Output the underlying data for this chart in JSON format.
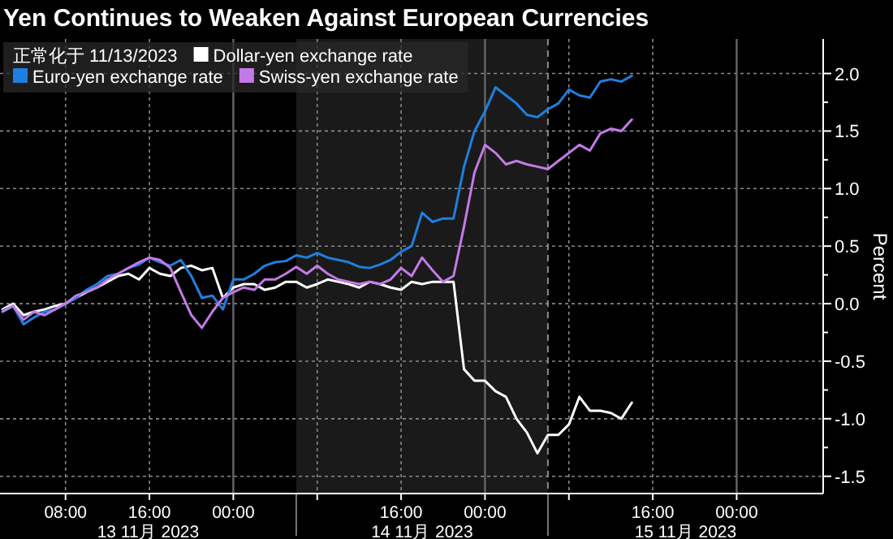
{
  "chart_data": {
    "type": "line",
    "title": "Yen Continues to Weaken Against European Currencies",
    "legend_title": "正常化于 11/13/2023",
    "ylabel": "Percent",
    "x": [
      "2023-11-13T02:00",
      "2023-11-13T03:00",
      "2023-11-13T04:00",
      "2023-11-13T05:00",
      "2023-11-13T06:00",
      "2023-11-13T07:00",
      "2023-11-13T08:00",
      "2023-11-13T09:00",
      "2023-11-13T10:00",
      "2023-11-13T11:00",
      "2023-11-13T12:00",
      "2023-11-13T13:00",
      "2023-11-13T14:00",
      "2023-11-13T15:00",
      "2023-11-13T16:00",
      "2023-11-13T17:00",
      "2023-11-13T18:00",
      "2023-11-13T19:00",
      "2023-11-13T20:00",
      "2023-11-13T21:00",
      "2023-11-13T22:00",
      "2023-11-13T23:00",
      "2023-11-14T00:00",
      "2023-11-14T01:00",
      "2023-11-14T02:00",
      "2023-11-14T03:00",
      "2023-11-14T04:00",
      "2023-11-14T05:00",
      "2023-11-14T06:00",
      "2023-11-14T07:00",
      "2023-11-14T08:00",
      "2023-11-14T09:00",
      "2023-11-14T10:00",
      "2023-11-14T11:00",
      "2023-11-14T12:00",
      "2023-11-14T13:00",
      "2023-11-14T14:00",
      "2023-11-14T15:00",
      "2023-11-14T16:00",
      "2023-11-14T17:00",
      "2023-11-14T18:00",
      "2023-11-14T19:00",
      "2023-11-14T20:00",
      "2023-11-14T21:00",
      "2023-11-14T22:00",
      "2023-11-14T23:00",
      "2023-11-15T00:00",
      "2023-11-15T01:00",
      "2023-11-15T02:00",
      "2023-11-15T03:00",
      "2023-11-15T04:00",
      "2023-11-15T05:00",
      "2023-11-15T06:00",
      "2023-11-15T07:00",
      "2023-11-15T08:00",
      "2023-11-15T09:00",
      "2023-11-15T10:00",
      "2023-11-15T11:00",
      "2023-11-15T12:00",
      "2023-11-15T13:00",
      "2023-11-15T14:00"
    ],
    "series": [
      {
        "name": "Dollar-yen exchange rate",
        "color": "#ffffff",
        "values": [
          -0.05,
          0.0,
          -0.1,
          -0.07,
          -0.05,
          -0.02,
          0.0,
          0.05,
          0.1,
          0.14,
          0.19,
          0.24,
          0.26,
          0.21,
          0.31,
          0.26,
          0.24,
          0.31,
          0.33,
          0.29,
          0.31,
          0.05,
          0.14,
          0.17,
          0.17,
          0.12,
          0.14,
          0.19,
          0.19,
          0.14,
          0.17,
          0.21,
          0.19,
          0.17,
          0.14,
          0.19,
          0.17,
          0.14,
          0.12,
          0.19,
          0.17,
          0.19,
          0.19,
          0.19,
          -0.57,
          -0.67,
          -0.67,
          -0.76,
          -0.81,
          -1.0,
          -1.12,
          -1.3,
          -1.14,
          -1.14,
          -1.05,
          -0.81,
          -0.93,
          -0.93,
          -0.95,
          -1.0,
          -0.86
        ]
      },
      {
        "name": "Euro-yen exchange rate",
        "color": "#1f7fe0",
        "values": [
          -0.06,
          -0.02,
          -0.18,
          -0.12,
          -0.07,
          -0.05,
          0.0,
          0.05,
          0.12,
          0.17,
          0.24,
          0.26,
          0.31,
          0.34,
          0.4,
          0.36,
          0.33,
          0.38,
          0.24,
          0.05,
          0.07,
          -0.05,
          0.21,
          0.21,
          0.26,
          0.33,
          0.36,
          0.37,
          0.42,
          0.4,
          0.44,
          0.4,
          0.38,
          0.36,
          0.32,
          0.31,
          0.34,
          0.38,
          0.45,
          0.5,
          0.79,
          0.71,
          0.74,
          0.74,
          1.19,
          1.5,
          1.67,
          1.88,
          1.81,
          1.74,
          1.64,
          1.62,
          1.69,
          1.74,
          1.86,
          1.81,
          1.79,
          1.93,
          1.95,
          1.93,
          1.98
        ]
      },
      {
        "name": "Swiss-yen exchange rate",
        "color": "#c47ae6",
        "values": [
          -0.07,
          -0.02,
          -0.14,
          -0.07,
          -0.1,
          -0.05,
          0.0,
          0.07,
          0.1,
          0.14,
          0.21,
          0.26,
          0.31,
          0.36,
          0.4,
          0.38,
          0.31,
          0.1,
          -0.1,
          -0.21,
          -0.07,
          0.05,
          0.1,
          0.14,
          0.12,
          0.21,
          0.21,
          0.26,
          0.32,
          0.26,
          0.33,
          0.26,
          0.21,
          0.19,
          0.17,
          0.19,
          0.17,
          0.21,
          0.31,
          0.24,
          0.4,
          0.29,
          0.19,
          0.24,
          0.67,
          1.14,
          1.38,
          1.31,
          1.21,
          1.24,
          1.21,
          1.19,
          1.17,
          1.24,
          1.31,
          1.38,
          1.33,
          1.48,
          1.52,
          1.5,
          1.6
        ]
      }
    ],
    "xlim": [
      "2023-11-13T01:45",
      "2023-11-16T08:15"
    ],
    "xticks": [
      {
        "value": "2023-11-13T08:00",
        "label": "08:00"
      },
      {
        "value": "2023-11-13T16:00",
        "label": "16:00"
      },
      {
        "value": "2023-11-14T00:00",
        "label": "00:00"
      },
      {
        "value": "2023-11-14T08:00",
        "label": null
      },
      {
        "value": "2023-11-14T16:00",
        "label": "16:00"
      },
      {
        "value": "2023-11-15T00:00",
        "label": "00:00"
      },
      {
        "value": "2023-11-15T08:00",
        "label": null
      },
      {
        "value": "2023-11-15T16:00",
        "label": "16:00"
      },
      {
        "value": "2023-11-16T00:00",
        "label": "00:00"
      }
    ],
    "ylim": [
      -1.65,
      2.3
    ],
    "yticks": [
      {
        "value": 2,
        "label": "2.0"
      },
      {
        "value": 1.75,
        "label": null
      },
      {
        "value": 1.5,
        "label": "1.5"
      },
      {
        "value": 1.25,
        "label": null
      },
      {
        "value": 1,
        "label": "1.0"
      },
      {
        "value": 0.75,
        "label": null
      },
      {
        "value": 0.5,
        "label": "0.5"
      },
      {
        "value": 0.25,
        "label": null
      },
      {
        "value": 0,
        "label": "0.0"
      },
      {
        "value": -0.25,
        "label": null
      },
      {
        "value": -0.5,
        "label": "-0.5"
      },
      {
        "value": -0.75,
        "label": null
      },
      {
        "value": -1,
        "label": "-1.0"
      },
      {
        "value": -1.25,
        "label": null
      },
      {
        "value": -1.5,
        "label": "-1.5"
      }
    ],
    "grid": true,
    "legend": "top left",
    "bands": [
      {
        "axis": "x",
        "from": "2023-11-14T06:00",
        "to": "2023-11-15T06:00",
        "color": "#1a1a1a"
      }
    ],
    "ref_lines": [
      {
        "axis": "x",
        "value": "2023-11-15T06:00",
        "color": "#8a8a8a",
        "line_style": "dashed"
      }
    ],
    "annotations": [
      "13 11月 2023",
      "14 11月 2023",
      "15 11月 2023"
    ]
  }
}
